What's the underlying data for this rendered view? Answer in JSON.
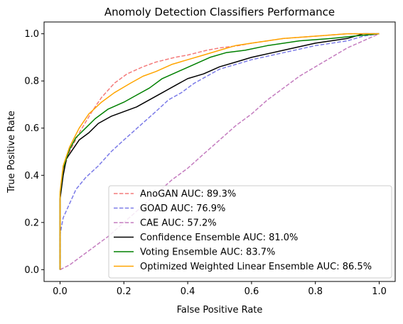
{
  "chart_data": {
    "type": "line",
    "title": "Anomoly Detection Classifiers Performance",
    "xlabel": "False Positive Rate",
    "ylabel": "True Positive Rate",
    "xlim": [
      -0.05,
      1.05
    ],
    "ylim": [
      -0.05,
      1.05
    ],
    "xticks": [
      "0.0",
      "0.2",
      "0.4",
      "0.6",
      "0.8",
      "1.0"
    ],
    "yticks": [
      "0.0",
      "0.2",
      "0.4",
      "0.6",
      "0.8",
      "1.0"
    ],
    "grid": false,
    "legend_position": "lower-right",
    "series": [
      {
        "name": "AnoGAN AUC: 89.3%",
        "color": "#f47a7a",
        "dash": "dashed",
        "points": [
          [
            0,
            0
          ],
          [
            0,
            0.3
          ],
          [
            0.01,
            0.42
          ],
          [
            0.03,
            0.5
          ],
          [
            0.06,
            0.58
          ],
          [
            0.1,
            0.67
          ],
          [
            0.13,
            0.73
          ],
          [
            0.17,
            0.79
          ],
          [
            0.21,
            0.83
          ],
          [
            0.26,
            0.86
          ],
          [
            0.3,
            0.88
          ],
          [
            0.36,
            0.9
          ],
          [
            0.4,
            0.91
          ],
          [
            0.46,
            0.93
          ],
          [
            0.5,
            0.94
          ],
          [
            0.56,
            0.95
          ],
          [
            0.6,
            0.96
          ],
          [
            0.7,
            0.98
          ],
          [
            0.8,
            0.99
          ],
          [
            0.9,
            1.0
          ],
          [
            1,
            1.0
          ]
        ]
      },
      {
        "name": "GOAD AUC: 76.9%",
        "color": "#7a7ae8",
        "dash": "dashed",
        "points": [
          [
            0,
            0
          ],
          [
            0,
            0.15
          ],
          [
            0.01,
            0.22
          ],
          [
            0.03,
            0.28
          ],
          [
            0.05,
            0.34
          ],
          [
            0.08,
            0.39
          ],
          [
            0.12,
            0.44
          ],
          [
            0.16,
            0.5
          ],
          [
            0.2,
            0.55
          ],
          [
            0.25,
            0.61
          ],
          [
            0.3,
            0.67
          ],
          [
            0.34,
            0.72
          ],
          [
            0.38,
            0.75
          ],
          [
            0.42,
            0.79
          ],
          [
            0.46,
            0.82
          ],
          [
            0.5,
            0.85
          ],
          [
            0.55,
            0.87
          ],
          [
            0.6,
            0.89
          ],
          [
            0.7,
            0.92
          ],
          [
            0.8,
            0.95
          ],
          [
            0.9,
            0.97
          ],
          [
            0.95,
            0.99
          ],
          [
            1,
            1.0
          ]
        ]
      },
      {
        "name": "CAE AUC: 57.2%",
        "color": "#c47cbf",
        "dash": "dashed",
        "points": [
          [
            0,
            0
          ],
          [
            0.03,
            0.02
          ],
          [
            0.06,
            0.05
          ],
          [
            0.1,
            0.09
          ],
          [
            0.15,
            0.14
          ],
          [
            0.2,
            0.2
          ],
          [
            0.25,
            0.26
          ],
          [
            0.3,
            0.32
          ],
          [
            0.35,
            0.38
          ],
          [
            0.4,
            0.43
          ],
          [
            0.45,
            0.49
          ],
          [
            0.5,
            0.55
          ],
          [
            0.55,
            0.61
          ],
          [
            0.6,
            0.66
          ],
          [
            0.65,
            0.72
          ],
          [
            0.7,
            0.77
          ],
          [
            0.75,
            0.82
          ],
          [
            0.8,
            0.86
          ],
          [
            0.85,
            0.9
          ],
          [
            0.9,
            0.94
          ],
          [
            0.95,
            0.97
          ],
          [
            1,
            1.0
          ]
        ]
      },
      {
        "name": "Confidence Ensemble AUC: 81.0%",
        "color": "#000000",
        "dash": "solid",
        "points": [
          [
            0,
            0
          ],
          [
            0,
            0.3
          ],
          [
            0.01,
            0.4
          ],
          [
            0.02,
            0.47
          ],
          [
            0.04,
            0.51
          ],
          [
            0.06,
            0.55
          ],
          [
            0.09,
            0.58
          ],
          [
            0.12,
            0.62
          ],
          [
            0.16,
            0.65
          ],
          [
            0.2,
            0.67
          ],
          [
            0.24,
            0.69
          ],
          [
            0.28,
            0.72
          ],
          [
            0.32,
            0.75
          ],
          [
            0.36,
            0.78
          ],
          [
            0.4,
            0.81
          ],
          [
            0.45,
            0.83
          ],
          [
            0.5,
            0.86
          ],
          [
            0.55,
            0.88
          ],
          [
            0.6,
            0.9
          ],
          [
            0.7,
            0.93
          ],
          [
            0.8,
            0.96
          ],
          [
            0.9,
            0.98
          ],
          [
            0.95,
            1.0
          ],
          [
            1,
            1.0
          ]
        ]
      },
      {
        "name": "Voting Ensemble AUC: 83.7%",
        "color": "#008000",
        "dash": "solid",
        "points": [
          [
            0,
            0
          ],
          [
            0,
            0.32
          ],
          [
            0.01,
            0.43
          ],
          [
            0.03,
            0.51
          ],
          [
            0.05,
            0.56
          ],
          [
            0.08,
            0.6
          ],
          [
            0.11,
            0.64
          ],
          [
            0.15,
            0.68
          ],
          [
            0.2,
            0.71
          ],
          [
            0.24,
            0.74
          ],
          [
            0.28,
            0.77
          ],
          [
            0.32,
            0.81
          ],
          [
            0.37,
            0.84
          ],
          [
            0.42,
            0.87
          ],
          [
            0.47,
            0.9
          ],
          [
            0.52,
            0.92
          ],
          [
            0.58,
            0.93
          ],
          [
            0.65,
            0.95
          ],
          [
            0.75,
            0.97
          ],
          [
            0.85,
            0.98
          ],
          [
            0.92,
            0.99
          ],
          [
            1,
            1.0
          ]
        ]
      },
      {
        "name": "Optimized Weighted Linear Ensemble AUC: 86.5%",
        "color": "#ffa500",
        "dash": "solid",
        "points": [
          [
            0,
            0
          ],
          [
            0,
            0.33
          ],
          [
            0.01,
            0.44
          ],
          [
            0.03,
            0.52
          ],
          [
            0.06,
            0.6
          ],
          [
            0.09,
            0.66
          ],
          [
            0.13,
            0.71
          ],
          [
            0.17,
            0.75
          ],
          [
            0.22,
            0.79
          ],
          [
            0.26,
            0.82
          ],
          [
            0.3,
            0.84
          ],
          [
            0.35,
            0.87
          ],
          [
            0.4,
            0.89
          ],
          [
            0.45,
            0.91
          ],
          [
            0.5,
            0.93
          ],
          [
            0.55,
            0.95
          ],
          [
            0.6,
            0.96
          ],
          [
            0.7,
            0.98
          ],
          [
            0.8,
            0.99
          ],
          [
            0.9,
            1.0
          ],
          [
            1,
            1.0
          ]
        ]
      }
    ]
  }
}
